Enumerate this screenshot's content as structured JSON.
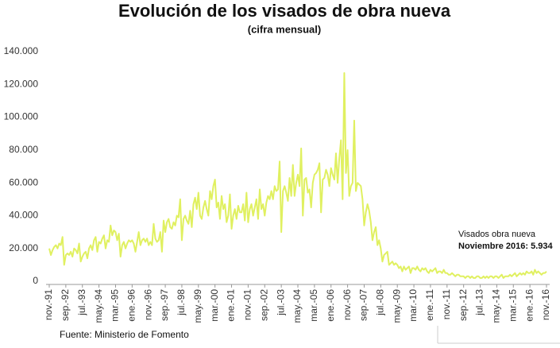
{
  "chart_data": {
    "type": "line",
    "title": "Evolución de los visados de obra nueva",
    "subtitle": "(cifra mensual)",
    "source": "Fuente: Ministerio de Fomento",
    "annotation": {
      "line1": "Visados obra nueva",
      "line2": "Noviembre 2016: 5.934"
    },
    "color": "#e0f060",
    "ylim": [
      0,
      140000
    ],
    "yticks": [
      0,
      {
        "value": 20000,
        "label": "20.000"
      },
      {
        "value": 40000,
        "label": "40.000"
      },
      {
        "value": 60000,
        "label": "60.000"
      },
      {
        "value": 80000,
        "label": "80.000"
      },
      {
        "value": 100000,
        "label": "100.000"
      },
      {
        "value": 120000,
        "label": "120.000"
      },
      {
        "value": 140000,
        "label": "140.000"
      }
    ],
    "grid": false,
    "categories": [
      "nov.-91",
      null,
      null,
      null,
      null,
      null,
      null,
      null,
      null,
      null,
      "sep.-92",
      null,
      null,
      null,
      null,
      null,
      null,
      null,
      null,
      null,
      "jul.-93",
      null,
      null,
      null,
      null,
      null,
      null,
      null,
      null,
      null,
      "may.-94",
      null,
      null,
      null,
      null,
      null,
      null,
      null,
      null,
      null,
      "mar.-95",
      null,
      null,
      null,
      null,
      null,
      null,
      null,
      null,
      null,
      "ene.-96",
      null,
      null,
      null,
      null,
      null,
      null,
      null,
      null,
      null,
      "nov.-96",
      null,
      null,
      null,
      null,
      null,
      null,
      null,
      null,
      null,
      "sep.-97",
      null,
      null,
      null,
      null,
      null,
      null,
      null,
      null,
      null,
      "jul.-98",
      null,
      null,
      null,
      null,
      null,
      null,
      null,
      null,
      null,
      "may.-99",
      null,
      null,
      null,
      null,
      null,
      null,
      null,
      null,
      null,
      "mar.-00",
      null,
      null,
      null,
      null,
      null,
      null,
      null,
      null,
      null,
      "ene.-01",
      null,
      null,
      null,
      null,
      null,
      null,
      null,
      null,
      null,
      "nov.-01",
      null,
      null,
      null,
      null,
      null,
      null,
      null,
      null,
      null,
      "sep.-02",
      null,
      null,
      null,
      null,
      null,
      null,
      null,
      null,
      null,
      "jul.-03",
      null,
      null,
      null,
      null,
      null,
      null,
      null,
      null,
      null,
      "may.-04",
      null,
      null,
      null,
      null,
      null,
      null,
      null,
      null,
      null,
      "mar.-05",
      null,
      null,
      null,
      null,
      null,
      null,
      null,
      null,
      null,
      "ene.-06",
      null,
      null,
      null,
      null,
      null,
      null,
      null,
      null,
      null,
      "nov.-06",
      null,
      null,
      null,
      null,
      null,
      null,
      null,
      null,
      null,
      "sep.-07",
      null,
      null,
      null,
      null,
      null,
      null,
      null,
      null,
      null,
      "jul.-08",
      null,
      null,
      null,
      null,
      null,
      null,
      null,
      null,
      null,
      "may.-09",
      null,
      null,
      null,
      null,
      null,
      null,
      null,
      null,
      null,
      "mar.-10",
      null,
      null,
      null,
      null,
      null,
      null,
      null,
      null,
      null,
      "ene.-11",
      null,
      null,
      null,
      null,
      null,
      null,
      null,
      null,
      null,
      "nov.-11",
      null,
      null,
      null,
      null,
      null,
      null,
      null,
      null,
      null,
      "sep.-12",
      null,
      null,
      null,
      null,
      null,
      null,
      null,
      null,
      null,
      "jul.-13",
      null,
      null,
      null,
      null,
      null,
      null,
      null,
      null,
      null,
      "may.-14",
      null,
      null,
      null,
      null,
      null,
      null,
      null,
      null,
      null,
      "mar.-15",
      null,
      null,
      null,
      null,
      null,
      null,
      null,
      null,
      null,
      "ene.-16",
      null,
      null,
      null,
      null,
      null,
      null,
      null,
      null,
      null,
      "nov.-16"
    ],
    "values": [
      20000,
      16000,
      19000,
      21000,
      22000,
      20000,
      23000,
      22000,
      27000,
      10000,
      16000,
      17000,
      16000,
      18000,
      15000,
      20000,
      19000,
      17000,
      23000,
      12000,
      15000,
      17000,
      18000,
      14000,
      20000,
      22000,
      19000,
      25000,
      27000,
      18000,
      24000,
      23000,
      26000,
      28000,
      20000,
      25000,
      24000,
      34000,
      28000,
      31000,
      30000,
      25000,
      29000,
      15000,
      22000,
      24000,
      20000,
      23000,
      25000,
      24000,
      25000,
      23000,
      18000,
      24000,
      30000,
      22000,
      25000,
      26000,
      24000,
      26000,
      22000,
      24000,
      22000,
      35000,
      26000,
      24000,
      25000,
      30000,
      18000,
      37000,
      30000,
      36000,
      38000,
      33000,
      32000,
      36000,
      34000,
      40000,
      39000,
      50000,
      25000,
      38000,
      40000,
      37000,
      35000,
      43000,
      33000,
      47000,
      51000,
      44000,
      54000,
      40000,
      38000,
      45000,
      49000,
      44000,
      40000,
      55000,
      50000,
      58000,
      62000,
      45000,
      48000,
      38000,
      52000,
      44000,
      47000,
      36000,
      40000,
      53000,
      32000,
      40000,
      44000,
      38000,
      46000,
      42000,
      42000,
      47000,
      37000,
      54000,
      36000,
      44000,
      47000,
      40000,
      45000,
      50000,
      38000,
      56000,
      44000,
      47000,
      40000,
      48000,
      52000,
      50000,
      55000,
      50000,
      58000,
      55000,
      56000,
      73000,
      30000,
      55000,
      58000,
      54000,
      49000,
      63000,
      52000,
      71000,
      52000,
      60000,
      65000,
      58000,
      81000,
      40000,
      62000,
      63000,
      54000,
      56000,
      45000,
      60000,
      65000,
      66000,
      68000,
      72000,
      42000,
      62000,
      63000,
      68000,
      65000,
      58000,
      69000,
      65000,
      62000,
      78000,
      60000,
      75000,
      86000,
      50000,
      127000,
      66000,
      80000,
      52000,
      58000,
      60000,
      98000,
      55000,
      60000,
      59000,
      58000,
      50000,
      34000,
      42000,
      47000,
      43000,
      36000,
      25000,
      30000,
      33000,
      22000,
      25000,
      20000,
      12000,
      16000,
      17000,
      18000,
      10000,
      11000,
      12000,
      10000,
      11000,
      10000,
      8000,
      9000,
      6000,
      9000,
      7000,
      8000,
      9000,
      5000,
      8000,
      8000,
      7000,
      9000,
      7000,
      6000,
      8000,
      7000,
      8000,
      6000,
      5000,
      7000,
      6000,
      7000,
      8000,
      5000,
      6000,
      6000,
      5000,
      7000,
      5000,
      5000,
      4000,
      4000,
      5000,
      4000,
      3000,
      4000,
      4000,
      3000,
      3000,
      3000,
      2000,
      3000,
      3000,
      2000,
      3000,
      2000,
      2000,
      3000,
      3000,
      2000,
      2000,
      3000,
      2000,
      3000,
      2000,
      3000,
      3000,
      2000,
      3000,
      3000,
      2000,
      3000,
      4000,
      2000,
      3000,
      3000,
      3000,
      4000,
      3000,
      4000,
      5000,
      3000,
      4000,
      5000,
      4000,
      5000,
      4000,
      6000,
      5000,
      5000,
      6000,
      4000,
      7000,
      5000,
      6000,
      5000,
      4000,
      5000,
      5000,
      5934
    ]
  }
}
